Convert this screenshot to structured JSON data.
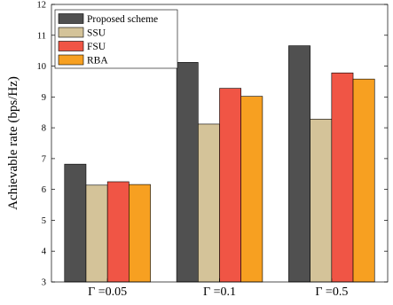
{
  "chart_data": {
    "type": "bar",
    "title": "",
    "xlabel": "",
    "ylabel": "Achievable rate (bps/Hz)",
    "categories": [
      "Γ =0.05",
      "Γ =0.1",
      "Γ =0.5"
    ],
    "ylim": [
      3,
      12
    ],
    "yticks": [
      "3",
      "4",
      "5",
      "6",
      "7",
      "8",
      "9",
      "10",
      "11",
      "12"
    ],
    "grid": false,
    "legend_position": "top-left",
    "series": [
      {
        "name": "Proposed scheme",
        "color": "#505050",
        "values": [
          6.82,
          10.12,
          10.66
        ]
      },
      {
        "name": "SSU",
        "color": "#D4C399",
        "values": [
          6.14,
          8.12,
          8.28
        ]
      },
      {
        "name": "FSU",
        "color": "#F05545",
        "values": [
          6.25,
          9.28,
          9.78
        ]
      },
      {
        "name": "RBA",
        "color": "#F7A021",
        "values": [
          6.16,
          9.02,
          9.58
        ]
      }
    ]
  }
}
